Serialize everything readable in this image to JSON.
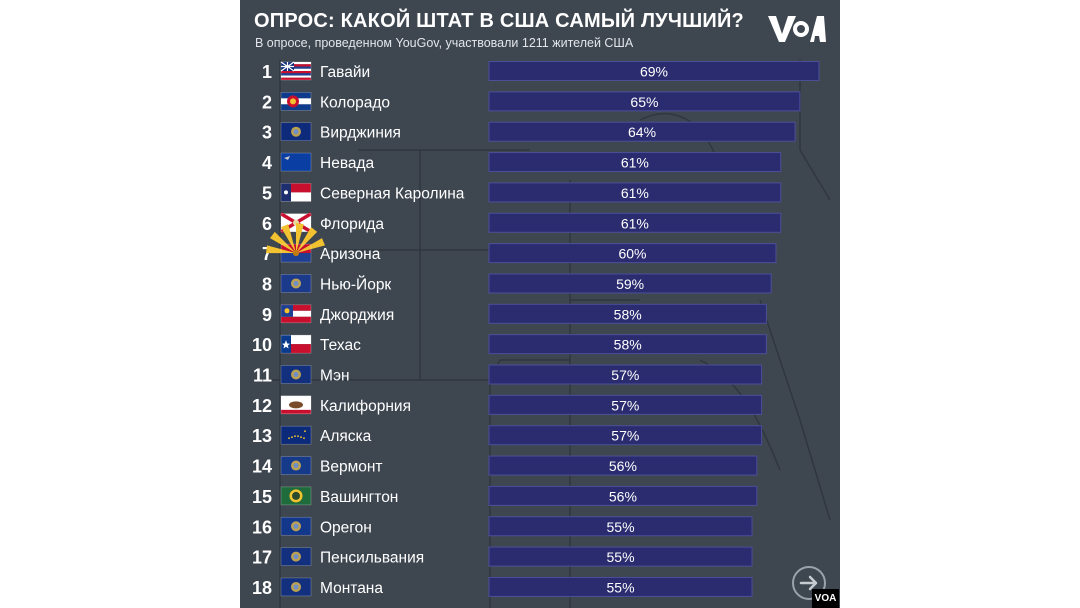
{
  "title": "ОПРОС: КАКОЙ ШТАТ В США САМЫЙ ЛУЧШИЙ?",
  "subtitle": "В опросе, проведенном YouGov, участвовали 1211 жителей США",
  "badge": "VOA",
  "colors": {
    "panel": "#3e4650",
    "bar": "#2b2c6f",
    "bar_border": "#4b4f99",
    "text": "#ffffff"
  },
  "chart_data": {
    "type": "bar",
    "orientation": "horizontal",
    "ranks": [
      1,
      2,
      3,
      4,
      5,
      6,
      7,
      8,
      9,
      10,
      11,
      12,
      13,
      14,
      15,
      16,
      17,
      18
    ],
    "categories": [
      "Гавайи",
      "Колорадо",
      "Вирджиния",
      "Невада",
      "Северная Каролина",
      "Флорида",
      "Аризона",
      "Нью-Йорк",
      "Джорджия",
      "Техас",
      "Мэн",
      "Калифорния",
      "Аляска",
      "Вермонт",
      "Вашингтон",
      "Орегон",
      "Пенсильвания",
      "Монтана"
    ],
    "values": [
      69,
      65,
      64,
      61,
      61,
      61,
      60,
      59,
      58,
      58,
      57,
      57,
      57,
      56,
      56,
      55,
      55,
      55
    ],
    "value_labels": [
      "69%",
      "65%",
      "64%",
      "61%",
      "61%",
      "61%",
      "60%",
      "59%",
      "58%",
      "58%",
      "57%",
      "57%",
      "57%",
      "56%",
      "56%",
      "55%",
      "55%",
      "55%"
    ],
    "flags": [
      "hawaii-flag",
      "colorado-flag",
      "virginia-flag",
      "nevada-flag",
      "north-carolina-flag",
      "florida-flag",
      "arizona-flag",
      "new-york-flag",
      "georgia-flag",
      "texas-flag",
      "maine-flag",
      "california-flag",
      "alaska-flag",
      "vermont-flag",
      "washington-flag",
      "oregon-flag",
      "pennsylvania-flag",
      "montana-flag"
    ],
    "xlim": [
      0,
      69
    ],
    "grid": false,
    "legend": "none"
  }
}
